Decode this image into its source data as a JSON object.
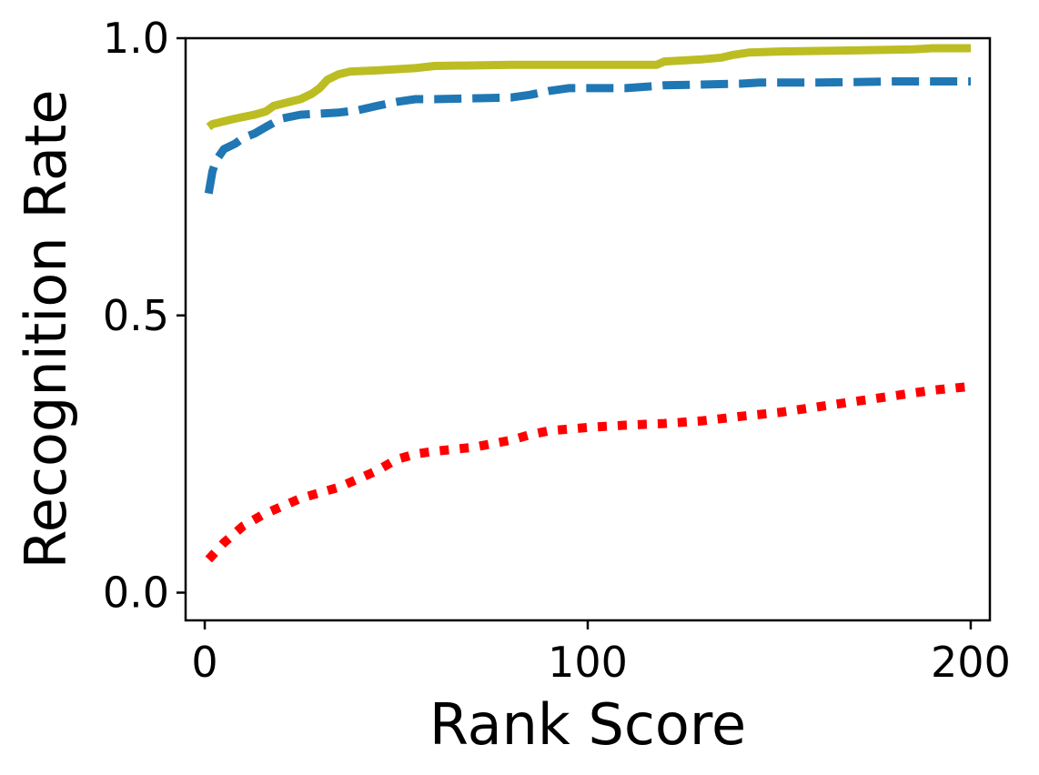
{
  "chart_data": {
    "type": "line",
    "title": "",
    "xlabel": "Rank Score",
    "ylabel": "Recognition Rate",
    "xlim": [
      -5,
      205
    ],
    "ylim": [
      -0.05,
      1.0
    ],
    "xticks": [
      0,
      100,
      200
    ],
    "xtick_labels": [
      "0",
      "100",
      "200"
    ],
    "yticks": [
      0.0,
      0.5,
      1.0
    ],
    "ytick_labels": [
      "0.0",
      "0.5",
      "1.0"
    ],
    "grid": false,
    "legend": "none",
    "series": [
      {
        "color": "#bcbd22",
        "line_style": "solid",
        "x": [
          1,
          2,
          5,
          8,
          10,
          13,
          16,
          18,
          22,
          25,
          28,
          30,
          32,
          35,
          38,
          45,
          50,
          55,
          60,
          80,
          100,
          118,
          120,
          130,
          135,
          138,
          142,
          150,
          170,
          185,
          190,
          200
        ],
        "y": [
          0.84,
          0.845,
          0.85,
          0.855,
          0.858,
          0.862,
          0.868,
          0.878,
          0.885,
          0.89,
          0.9,
          0.91,
          0.925,
          0.935,
          0.94,
          0.942,
          0.944,
          0.946,
          0.95,
          0.952,
          0.952,
          0.952,
          0.958,
          0.962,
          0.965,
          0.97,
          0.974,
          0.976,
          0.978,
          0.98,
          0.982,
          0.982
        ]
      },
      {
        "color": "#1f77b4",
        "line_style": "dashed",
        "x": [
          1,
          2,
          3,
          5,
          8,
          10,
          13,
          16,
          20,
          25,
          30,
          35,
          40,
          45,
          50,
          55,
          60,
          80,
          85,
          90,
          95,
          110,
          120,
          140,
          145,
          160,
          180,
          200
        ],
        "y": [
          0.72,
          0.76,
          0.78,
          0.8,
          0.81,
          0.82,
          0.828,
          0.84,
          0.855,
          0.862,
          0.864,
          0.866,
          0.87,
          0.878,
          0.885,
          0.89,
          0.89,
          0.893,
          0.898,
          0.905,
          0.91,
          0.91,
          0.915,
          0.918,
          0.92,
          0.92,
          0.922,
          0.922
        ]
      },
      {
        "color": "#ff0000",
        "line_style": "dotted",
        "x": [
          1,
          5,
          10,
          15,
          20,
          25,
          30,
          35,
          40,
          45,
          50,
          55,
          60,
          70,
          80,
          85,
          90,
          95,
          100,
          110,
          120,
          130,
          140,
          150,
          160,
          170,
          180,
          190,
          200
        ],
        "y": [
          0.06,
          0.09,
          0.12,
          0.14,
          0.155,
          0.17,
          0.18,
          0.19,
          0.205,
          0.22,
          0.24,
          0.25,
          0.255,
          0.262,
          0.275,
          0.285,
          0.292,
          0.295,
          0.298,
          0.302,
          0.305,
          0.31,
          0.318,
          0.325,
          0.335,
          0.345,
          0.355,
          0.365,
          0.372
        ]
      }
    ]
  }
}
